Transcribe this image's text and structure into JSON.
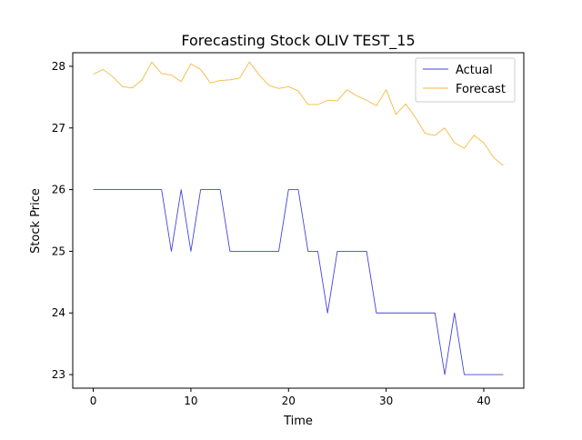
{
  "chart_data": {
    "type": "line",
    "title": "Forecasting Stock OLIV TEST_15",
    "xlabel": "Time",
    "ylabel": "Stock Price",
    "xlim": [
      -2.1,
      44.1
    ],
    "ylim": [
      22.78,
      28.22
    ],
    "x_ticks": [
      0,
      10,
      20,
      30,
      40
    ],
    "y_ticks": [
      23,
      24,
      25,
      26,
      27,
      28
    ],
    "grid": false,
    "legend_position": "top-right",
    "x": [
      0,
      1,
      2,
      3,
      4,
      5,
      6,
      7,
      8,
      9,
      10,
      11,
      12,
      13,
      14,
      15,
      16,
      17,
      18,
      19,
      20,
      21,
      22,
      23,
      24,
      25,
      26,
      27,
      28,
      29,
      30,
      31,
      32,
      33,
      34,
      35,
      36,
      37,
      38,
      39,
      40,
      41,
      42
    ],
    "series": [
      {
        "name": "Actual",
        "color": "#4444dd",
        "values": [
          26,
          26,
          26,
          26,
          26,
          26,
          26,
          26,
          25,
          26,
          25,
          26,
          26,
          26,
          25,
          25,
          25,
          25,
          25,
          25,
          26,
          26,
          25,
          25,
          24,
          25,
          25,
          25,
          25,
          24,
          24,
          24,
          24,
          24,
          24,
          24,
          23,
          24,
          23,
          23,
          23,
          23,
          23
        ]
      },
      {
        "name": "Forecast",
        "color": "#f5b942",
        "values": [
          27.87,
          27.95,
          27.83,
          27.67,
          27.65,
          27.78,
          28.07,
          27.88,
          27.86,
          27.75,
          28.04,
          27.95,
          27.73,
          27.77,
          27.78,
          27.81,
          28.07,
          27.86,
          27.69,
          27.64,
          27.67,
          27.6,
          27.38,
          27.38,
          27.45,
          27.44,
          27.62,
          27.52,
          27.45,
          27.36,
          27.62,
          27.22,
          27.39,
          27.17,
          26.91,
          26.88,
          27.0,
          26.76,
          26.67,
          26.88,
          26.76,
          26.52,
          26.39
        ]
      }
    ]
  }
}
